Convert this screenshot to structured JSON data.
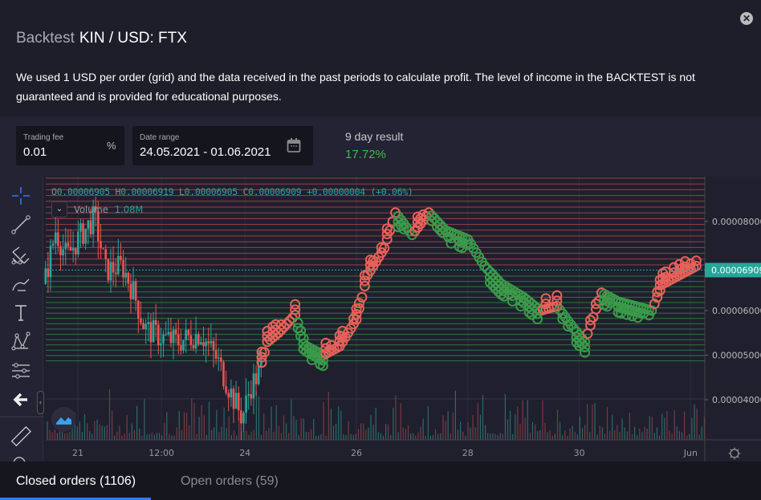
{
  "header": {
    "title_prefix": "Backtest",
    "title": "KIN / USD: FTX",
    "close_icon": "close-icon"
  },
  "description": "We used 1 USD per order (grid) and the data received in the past periods to calculate profit. The level of income in the BACKTEST is not guaranteed and is provided for educational purposes.",
  "trading_fee": {
    "label": "Trading fee",
    "value": "0.01",
    "suffix": "%"
  },
  "date_range": {
    "label": "Date range",
    "value": "24.05.2021 - 01.06.2021"
  },
  "result": {
    "label": "9 day result",
    "value": "17.72%"
  },
  "chart": {
    "ohlc": {
      "o_label": "O",
      "o": "0.00006905",
      "h_label": "H",
      "h": "0.00006919",
      "l_label": "L",
      "l": "0.00006905",
      "c_label": "C",
      "c": "0.00006909",
      "change": "+0.00000004 (+0.06%)"
    },
    "volume_label": "Volume",
    "volume_value": "1.08M",
    "y_ticks": [
      "0.00008000",
      "0.00006000",
      "0.00005000",
      "0.00004000"
    ],
    "y_tick_values": [
      8,
      6,
      5,
      4
    ],
    "current_price": "0.00006909",
    "current_value": 6.909,
    "x_ticks": [
      "21",
      "12:00",
      "24",
      "26",
      "28",
      "30",
      "Jun"
    ],
    "x_tick_days": [
      21,
      22.5,
      24,
      26,
      28,
      30,
      32
    ],
    "price_path_e5": [
      [
        20.4,
        6.6
      ],
      [
        20.6,
        7.8
      ],
      [
        20.8,
        7.2
      ],
      [
        21.0,
        7.6
      ],
      [
        21.3,
        8.1
      ],
      [
        21.5,
        6.9
      ],
      [
        21.8,
        7.0
      ],
      [
        22.0,
        6.4
      ],
      [
        22.2,
        5.6
      ],
      [
        22.5,
        5.4
      ],
      [
        22.8,
        5.3
      ],
      [
        23.0,
        5.4
      ],
      [
        23.2,
        5.5
      ],
      [
        23.5,
        4.9
      ],
      [
        23.8,
        4.0
      ],
      [
        23.95,
        3.6
      ],
      [
        24.1,
        4.3
      ],
      [
        24.25,
        4.6
      ],
      [
        24.4,
        5.3
      ],
      [
        24.6,
        5.5
      ],
      [
        24.9,
        5.9
      ],
      [
        25.1,
        5.2
      ],
      [
        25.4,
        5.0
      ],
      [
        25.7,
        5.2
      ],
      [
        26.0,
        5.8
      ],
      [
        26.2,
        6.8
      ],
      [
        26.5,
        7.4
      ],
      [
        26.7,
        8.2
      ],
      [
        27.0,
        7.7
      ],
      [
        27.3,
        8.2
      ],
      [
        27.6,
        7.8
      ],
      [
        28.0,
        7.6
      ],
      [
        28.3,
        7.0
      ],
      [
        28.6,
        6.6
      ],
      [
        29.0,
        6.3
      ],
      [
        29.3,
        6.0
      ],
      [
        29.6,
        6.1
      ],
      [
        29.9,
        5.6
      ],
      [
        30.1,
        5.3
      ],
      [
        30.4,
        6.4
      ],
      [
        30.7,
        6.2
      ],
      [
        31.0,
        6.1
      ],
      [
        31.3,
        6.0
      ],
      [
        31.5,
        6.6
      ],
      [
        31.8,
        6.8
      ],
      [
        32.1,
        7.0
      ]
    ],
    "colors": {
      "up": "#26a69a",
      "down": "#ef5350",
      "buy": "#3a9a4a",
      "sell": "#e8615a",
      "grid_sell": "#b84a48",
      "grid_buy": "#2f8a45",
      "accent": "#2e7cf6"
    }
  },
  "tabs": [
    {
      "label": "Closed orders (1106)"
    },
    {
      "label": "Open orders (59)"
    }
  ]
}
